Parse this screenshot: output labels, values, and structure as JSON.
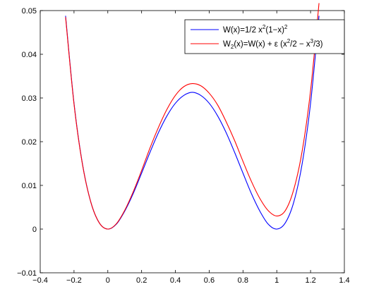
{
  "chart_data": {
    "type": "line",
    "title": "",
    "xlabel": "",
    "ylabel": "",
    "xlim": [
      -0.4,
      1.4
    ],
    "ylim": [
      -0.01,
      0.05
    ],
    "x_ticks": [
      "−0.4",
      "−0.2",
      "0",
      "0.2",
      "0.4",
      "0.6",
      "0.8",
      "1",
      "1.2",
      "1.4"
    ],
    "y_ticks": [
      "−0.01",
      "0",
      "0.01",
      "0.02",
      "0.03",
      "0.04",
      "0.05"
    ],
    "x_tick_values": [
      -0.4,
      -0.2,
      0,
      0.2,
      0.4,
      0.6,
      0.8,
      1.0,
      1.2,
      1.4
    ],
    "y_tick_values": [
      -0.01,
      0,
      0.01,
      0.02,
      0.03,
      0.04,
      0.05
    ],
    "grid": false,
    "legend_position": "top-right",
    "series": [
      {
        "name": "W(x)=1/2 x^2(1−x)^2",
        "color": "#0000ff",
        "x": [
          -0.25,
          -0.2,
          -0.15,
          -0.1,
          -0.05,
          0,
          0.05,
          0.1,
          0.15,
          0.2,
          0.25,
          0.3,
          0.35,
          0.4,
          0.45,
          0.5,
          0.55,
          0.6,
          0.65,
          0.7,
          0.75,
          0.8,
          0.85,
          0.9,
          0.95,
          1.0,
          1.05,
          1.1,
          1.15,
          1.2,
          1.25
        ],
        "y": [
          0.0488,
          0.0288,
          0.0149,
          0.0061,
          0.0014,
          0,
          0.0011,
          0.0041,
          0.0081,
          0.0128,
          0.0176,
          0.0221,
          0.0259,
          0.0288,
          0.0306,
          0.0313,
          0.0306,
          0.0288,
          0.0259,
          0.0221,
          0.0176,
          0.0128,
          0.0081,
          0.0041,
          0.0011,
          0,
          0.0014,
          0.0061,
          0.0149,
          0.0288,
          0.0488
        ]
      },
      {
        "name": "W_2(x)=W(x) + ε (x^2/2 − x^3/3)",
        "color": "#ff0000",
        "x": [
          -0.25,
          -0.2,
          -0.15,
          -0.1,
          -0.05,
          0,
          0.05,
          0.1,
          0.15,
          0.2,
          0.25,
          0.3,
          0.35,
          0.4,
          0.45,
          0.5,
          0.55,
          0.6,
          0.65,
          0.7,
          0.75,
          0.8,
          0.85,
          0.9,
          0.95,
          1.0,
          1.05,
          1.1,
          1.15,
          1.2,
          1.25
        ],
        "y": [
          0.0485,
          0.0286,
          0.0148,
          0.0061,
          0.0014,
          0,
          0.0012,
          0.0043,
          0.0085,
          0.0134,
          0.0186,
          0.0233,
          0.0274,
          0.0306,
          0.0326,
          0.0333,
          0.0328,
          0.0311,
          0.0284,
          0.0246,
          0.0203,
          0.0155,
          0.0109,
          0.007,
          0.0042,
          0.003,
          0.0042,
          0.009,
          0.0178,
          0.0317,
          0.0517
        ]
      }
    ]
  },
  "legend": {
    "entries": [
      {
        "base": "W(x)=1/2 x",
        "sup1": "2",
        "mid": "(1−x)",
        "sup2": "2"
      },
      {
        "base": "W",
        "sub": "2",
        "mid": "(x)=W(x) + ε (x",
        "sup1": "2",
        "mid2": "/2 − x",
        "sup2": "3",
        "tail": "/3)"
      }
    ]
  }
}
